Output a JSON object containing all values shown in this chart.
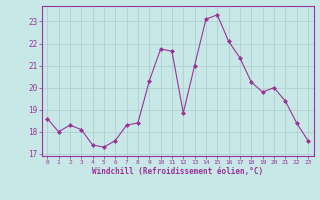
{
  "hours": [
    0,
    1,
    2,
    3,
    4,
    5,
    6,
    7,
    8,
    9,
    10,
    11,
    12,
    13,
    14,
    15,
    16,
    17,
    18,
    19,
    20,
    21,
    22,
    23
  ],
  "values": [
    18.6,
    18.0,
    18.3,
    18.1,
    17.4,
    17.3,
    17.6,
    18.3,
    18.4,
    20.3,
    21.75,
    21.65,
    18.85,
    21.0,
    23.1,
    23.3,
    22.1,
    21.35,
    20.25,
    19.8,
    20.0,
    19.4,
    18.4,
    17.6
  ],
  "line_color": "#993399",
  "marker_color": "#993399",
  "bg_color": "#c8e8e8",
  "grid_color": "#aacccc",
  "xlabel": "Windchill (Refroidissement éolien,°C)",
  "xlabel_color": "#993399",
  "tick_color": "#993399",
  "ylim": [
    16.9,
    23.7
  ],
  "yticks": [
    17,
    18,
    19,
    20,
    21,
    22,
    23
  ],
  "xticks": [
    0,
    1,
    2,
    3,
    4,
    5,
    6,
    7,
    8,
    9,
    10,
    11,
    12,
    13,
    14,
    15,
    16,
    17,
    18,
    19,
    20,
    21,
    22,
    23
  ],
  "figsize": [
    3.2,
    2.0
  ],
  "dpi": 100
}
